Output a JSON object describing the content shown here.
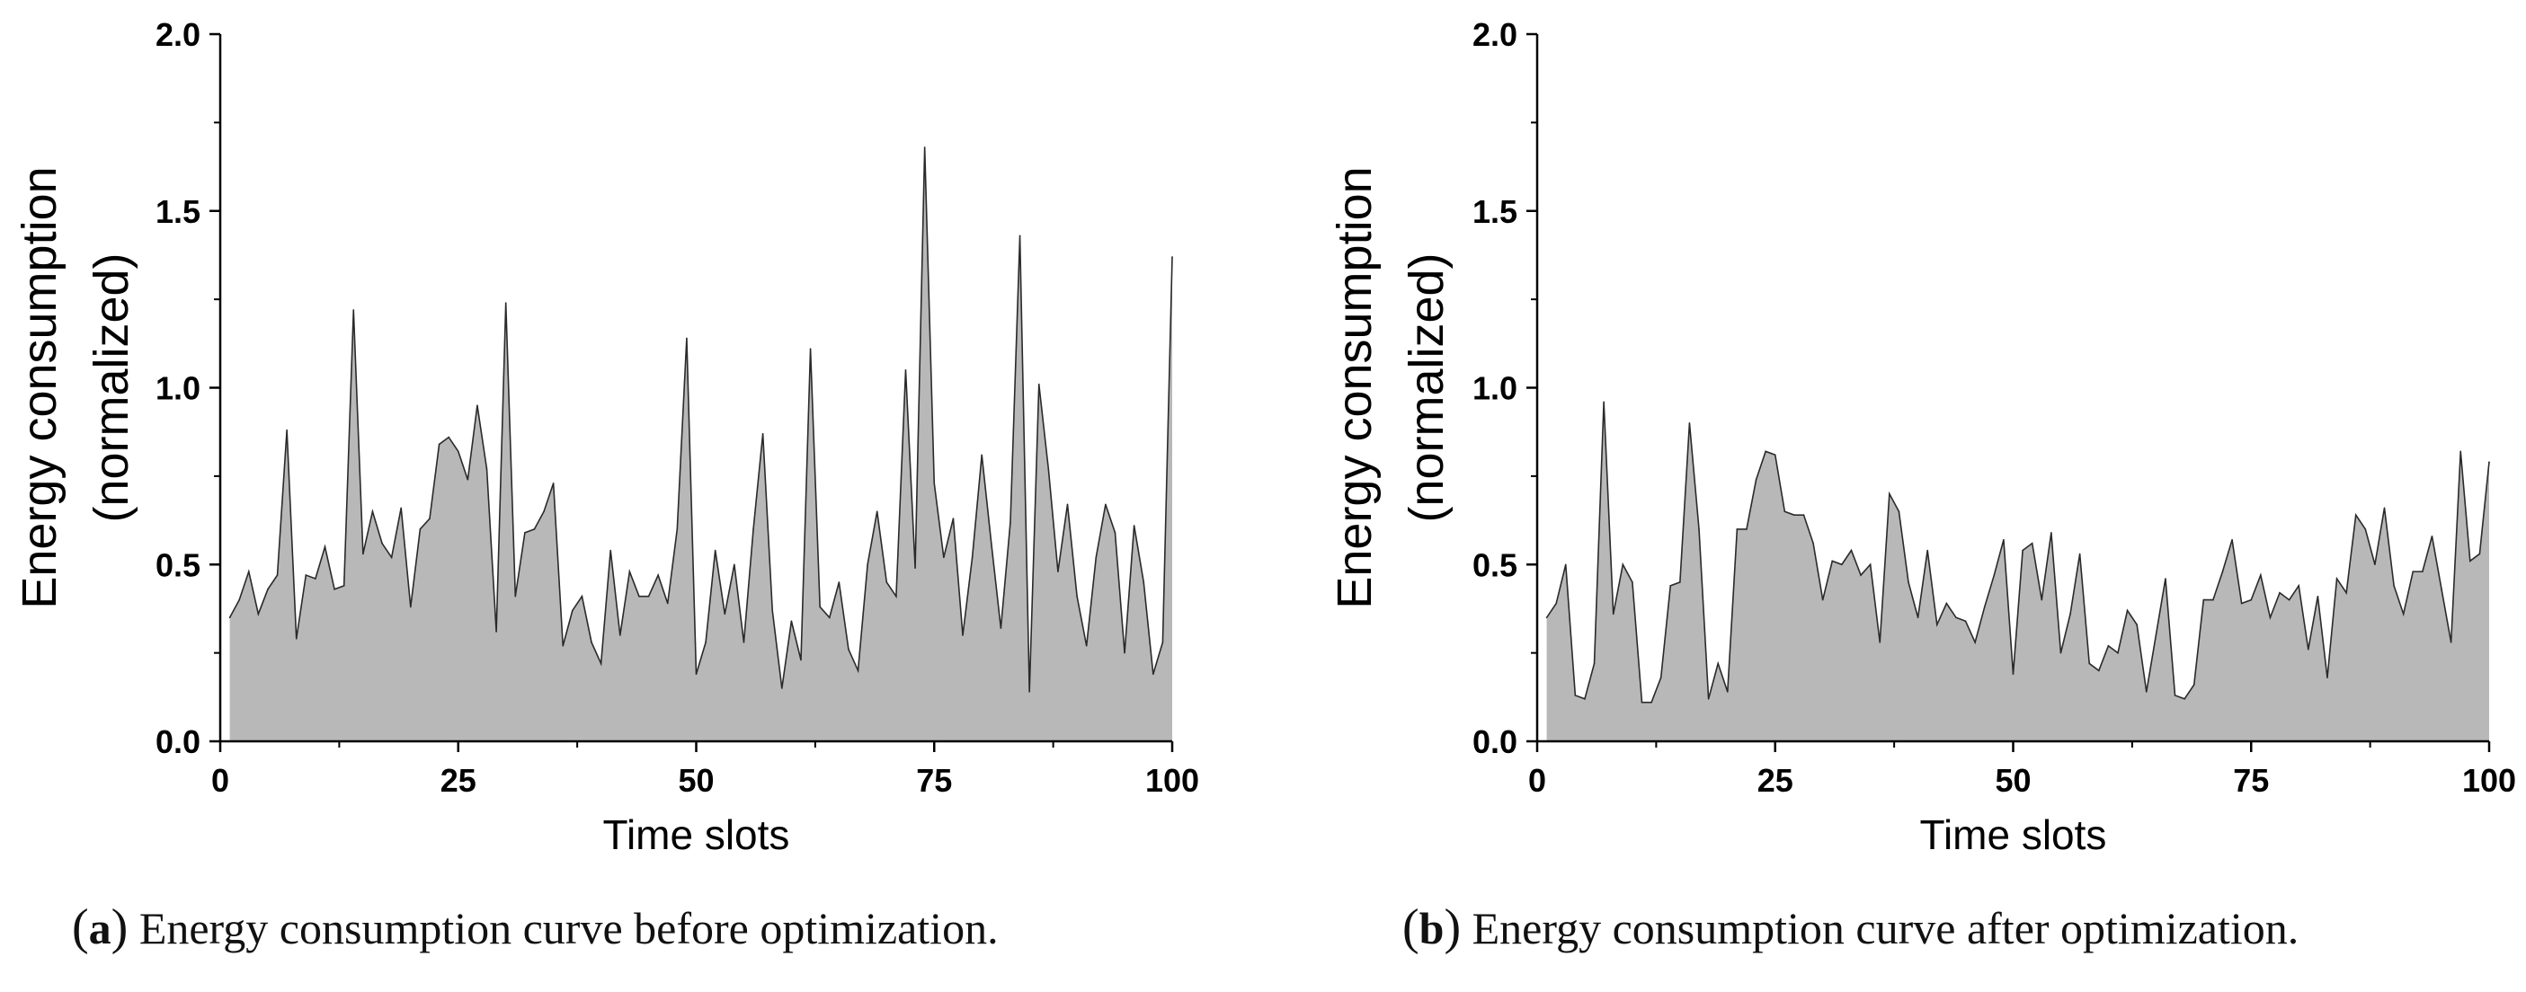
{
  "charts": {
    "a": {
      "caption_letter": "a",
      "caption_text": "Energy consumption curve before optimization.",
      "chart_data": {
        "type": "area",
        "title": "",
        "xlabel": "Time slots",
        "ylabel_line1": "Energy consumption",
        "ylabel_line2": "(normalized)",
        "xlim": [
          0,
          100
        ],
        "ylim": [
          0,
          2.0
        ],
        "x_ticks": [
          "0",
          "25",
          "50",
          "75",
          "100"
        ],
        "y_ticks": [
          "0.0",
          "0.5",
          "1.0",
          "1.5",
          "2.0"
        ],
        "x": [
          1,
          2,
          3,
          4,
          5,
          6,
          7,
          8,
          9,
          10,
          11,
          12,
          13,
          14,
          15,
          16,
          17,
          18,
          19,
          20,
          21,
          22,
          23,
          24,
          25,
          26,
          27,
          28,
          29,
          30,
          31,
          32,
          33,
          34,
          35,
          36,
          37,
          38,
          39,
          40,
          41,
          42,
          43,
          44,
          45,
          46,
          47,
          48,
          49,
          50,
          51,
          52,
          53,
          54,
          55,
          56,
          57,
          58,
          59,
          60,
          61,
          62,
          63,
          64,
          65,
          66,
          67,
          68,
          69,
          70,
          71,
          72,
          73,
          74,
          75,
          76,
          77,
          78,
          79,
          80,
          81,
          82,
          83,
          84,
          85,
          86,
          87,
          88,
          89,
          90,
          91,
          92,
          93,
          94,
          95,
          96,
          97,
          98,
          99,
          100
        ],
        "values": [
          0.35,
          0.4,
          0.48,
          0.36,
          0.43,
          0.47,
          0.88,
          0.29,
          0.47,
          0.46,
          0.55,
          0.43,
          0.44,
          1.22,
          0.53,
          0.65,
          0.56,
          0.52,
          0.66,
          0.38,
          0.6,
          0.63,
          0.84,
          0.86,
          0.82,
          0.74,
          0.95,
          0.77,
          0.31,
          1.24,
          0.41,
          0.59,
          0.6,
          0.65,
          0.73,
          0.27,
          0.37,
          0.41,
          0.28,
          0.22,
          0.54,
          0.3,
          0.48,
          0.41,
          0.41,
          0.47,
          0.39,
          0.6,
          1.14,
          0.19,
          0.28,
          0.54,
          0.36,
          0.5,
          0.28,
          0.6,
          0.87,
          0.37,
          0.15,
          0.34,
          0.23,
          1.11,
          0.38,
          0.35,
          0.45,
          0.26,
          0.2,
          0.5,
          0.65,
          0.45,
          0.41,
          1.05,
          0.49,
          1.68,
          0.73,
          0.52,
          0.63,
          0.3,
          0.52,
          0.81,
          0.56,
          0.32,
          0.62,
          1.43,
          0.14,
          1.01,
          0.77,
          0.48,
          0.67,
          0.41,
          0.27,
          0.52,
          0.67,
          0.59,
          0.25,
          0.61,
          0.45,
          0.19,
          0.28,
          1.37
        ]
      }
    },
    "b": {
      "caption_letter": "b",
      "caption_text": "Energy consumption curve after optimization.",
      "chart_data": {
        "type": "area",
        "title": "",
        "xlabel": "Time slots",
        "ylabel_line1": "Energy consumption",
        "ylabel_line2": "(normalized)",
        "xlim": [
          0,
          100
        ],
        "ylim": [
          0,
          2.0
        ],
        "x_ticks": [
          "0",
          "25",
          "50",
          "75",
          "100"
        ],
        "y_ticks": [
          "0.0",
          "0.5",
          "1.0",
          "1.5",
          "2.0"
        ],
        "x": [
          1,
          2,
          3,
          4,
          5,
          6,
          7,
          8,
          9,
          10,
          11,
          12,
          13,
          14,
          15,
          16,
          17,
          18,
          19,
          20,
          21,
          22,
          23,
          24,
          25,
          26,
          27,
          28,
          29,
          30,
          31,
          32,
          33,
          34,
          35,
          36,
          37,
          38,
          39,
          40,
          41,
          42,
          43,
          44,
          45,
          46,
          47,
          48,
          49,
          50,
          51,
          52,
          53,
          54,
          55,
          56,
          57,
          58,
          59,
          60,
          61,
          62,
          63,
          64,
          65,
          66,
          67,
          68,
          69,
          70,
          71,
          72,
          73,
          74,
          75,
          76,
          77,
          78,
          79,
          80,
          81,
          82,
          83,
          84,
          85,
          86,
          87,
          88,
          89,
          90,
          91,
          92,
          93,
          94,
          95,
          96,
          97,
          98,
          99,
          100
        ],
        "values": [
          0.35,
          0.39,
          0.5,
          0.13,
          0.12,
          0.22,
          0.96,
          0.36,
          0.5,
          0.45,
          0.11,
          0.11,
          0.18,
          0.44,
          0.45,
          0.9,
          0.6,
          0.12,
          0.22,
          0.14,
          0.6,
          0.6,
          0.74,
          0.82,
          0.81,
          0.65,
          0.64,
          0.64,
          0.56,
          0.4,
          0.51,
          0.5,
          0.54,
          0.47,
          0.5,
          0.28,
          0.7,
          0.65,
          0.45,
          0.35,
          0.54,
          0.33,
          0.39,
          0.35,
          0.34,
          0.28,
          0.38,
          0.47,
          0.57,
          0.19,
          0.54,
          0.56,
          0.4,
          0.59,
          0.25,
          0.36,
          0.53,
          0.22,
          0.2,
          0.27,
          0.25,
          0.37,
          0.33,
          0.14,
          0.3,
          0.46,
          0.13,
          0.12,
          0.16,
          0.4,
          0.4,
          0.48,
          0.57,
          0.39,
          0.4,
          0.47,
          0.35,
          0.42,
          0.4,
          0.44,
          0.26,
          0.41,
          0.18,
          0.46,
          0.42,
          0.64,
          0.6,
          0.5,
          0.66,
          0.44,
          0.36,
          0.48,
          0.48,
          0.58,
          0.43,
          0.28,
          0.82,
          0.51,
          0.53,
          0.79
        ]
      }
    }
  }
}
